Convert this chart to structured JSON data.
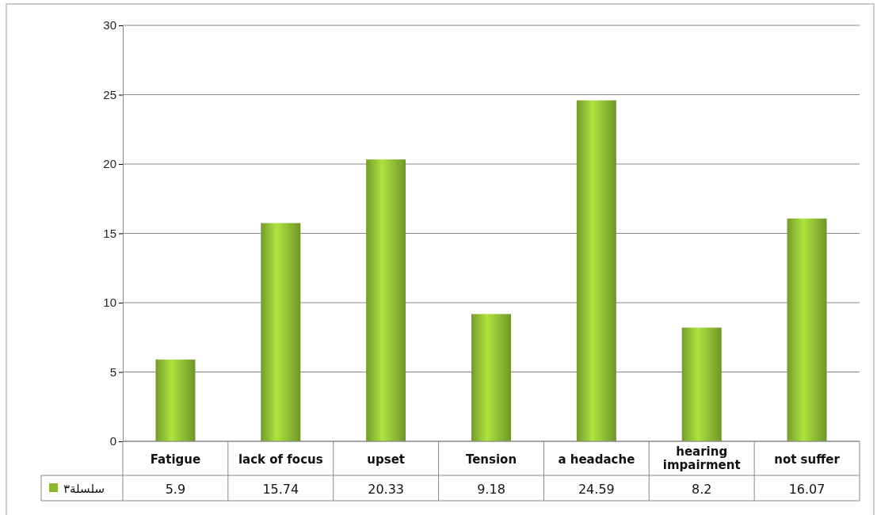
{
  "chart_data": {
    "type": "bar",
    "categories": [
      "Fatigue",
      "lack of focus",
      "upset",
      "Tension",
      "a headache",
      "hearing impairment",
      "not suffer"
    ],
    "series": [
      {
        "name": "سلسلة٣",
        "color": "#8cb833",
        "values": [
          5.9,
          15.74,
          20.33,
          9.18,
          24.59,
          8.2,
          16.07
        ]
      }
    ],
    "ylim": [
      0,
      30
    ],
    "yticks": [
      0,
      5,
      10,
      15,
      20,
      25,
      30
    ],
    "grid": "y",
    "data_labels": true,
    "legend": "bottom left"
  }
}
